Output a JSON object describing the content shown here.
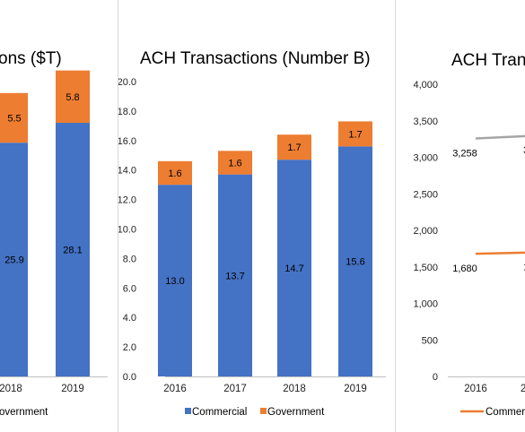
{
  "colors": {
    "commercial": "#4472C4",
    "government": "#ED7D31",
    "series_gray": "#A5A5A5",
    "grid": "#D9D9D9"
  },
  "chart_data": [
    {
      "type": "bar",
      "stacked": true,
      "title": "ons ($T)",
      "categories": [
        "2018",
        "2019"
      ],
      "series": [
        {
          "name": "",
          "values": [
            25.9,
            28.1
          ],
          "labels": [
            "25.9",
            "28.1"
          ]
        },
        {
          "name": "",
          "values": [
            5.5,
            5.8
          ],
          "labels": [
            "5.5",
            "5.8"
          ]
        }
      ],
      "legend_text": "overnment",
      "legend_position": "bottom",
      "grid": false
    },
    {
      "type": "bar",
      "stacked": true,
      "title": "ACH Transactions (Number B)",
      "categories": [
        "2016",
        "2017",
        "2018",
        "2019"
      ],
      "series": [
        {
          "name": "Commercial",
          "values": [
            13.0,
            13.7,
            14.7,
            15.6
          ],
          "labels": [
            "13.0",
            "13.7",
            "14.7",
            "15.6"
          ]
        },
        {
          "name": "Government",
          "values": [
            1.6,
            1.6,
            1.7,
            1.7
          ],
          "labels": [
            "1.6",
            "1.6",
            "1.7",
            "1.7"
          ]
        }
      ],
      "ylim": [
        0,
        20
      ],
      "yticks": [
        "0.0",
        "2.0",
        "4.0",
        "6.0",
        "8.0",
        "10.0",
        "12.0",
        "14.0",
        "16.0",
        "18.0",
        "20.0"
      ],
      "legend_position": "bottom",
      "grid": false
    },
    {
      "type": "line",
      "title": "ACH Tran",
      "categories": [
        "2016",
        "2"
      ],
      "series": [
        {
          "name": "",
          "values": [
            3258,
            3300
          ],
          "labels": [
            "3,258",
            "3"
          ]
        },
        {
          "name": "",
          "values": [
            1680,
            1700
          ],
          "labels": [
            "1,680",
            "1"
          ]
        }
      ],
      "ylim": [
        0,
        4000
      ],
      "yticks": [
        "0",
        "500",
        "1,000",
        "1,500",
        "2,000",
        "2,500",
        "3,000",
        "3,500",
        "4,000"
      ],
      "legend_text": "Commerc",
      "legend_position": "bottom",
      "grid": false
    }
  ]
}
